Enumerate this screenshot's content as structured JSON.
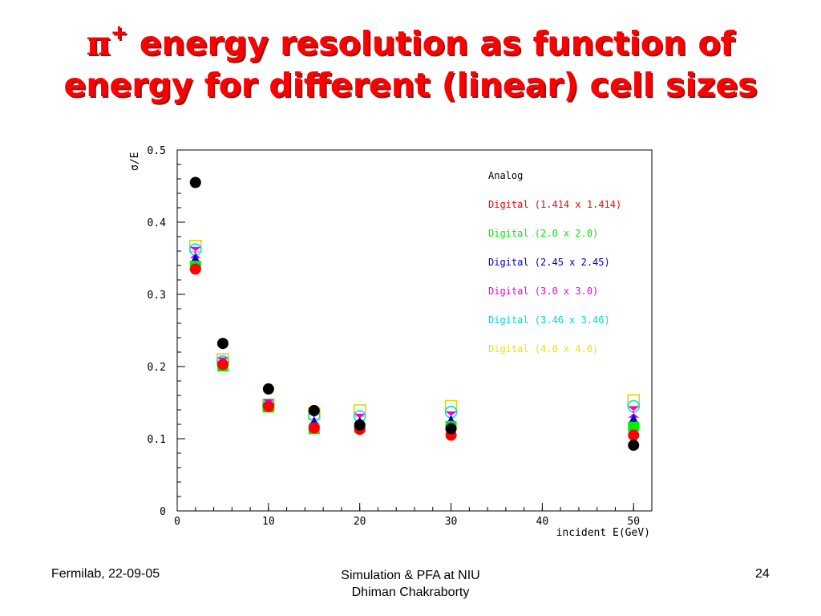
{
  "title": {
    "symbol": "π",
    "superscript": "+",
    "line1_rest": " energy resolution as function of",
    "line2": "energy for different (linear) cell sizes"
  },
  "footer": {
    "left": "Fermilab, 22-09-05",
    "center_line1": "Simulation & PFA at NIU",
    "center_line2": "Dhiman Chakraborty",
    "right": "24"
  },
  "chart_data": {
    "type": "scatter",
    "title": "",
    "xlabel": "incident E(GeV)",
    "ylabel": "σ/E",
    "xlim": [
      0,
      52
    ],
    "ylim": [
      0,
      0.5
    ],
    "x_ticks": [
      "0",
      "10",
      "20",
      "30",
      "40",
      "50"
    ],
    "y_ticks": [
      "0",
      "0.1",
      "0.2",
      "0.3",
      "0.4",
      "0.5"
    ],
    "grid": false,
    "legend_position": "top-right",
    "x": [
      2,
      5,
      10,
      15,
      20,
      30,
      50
    ],
    "series": [
      {
        "name": "Analog",
        "color": "#000000",
        "marker": "circle",
        "values": [
          0.455,
          0.232,
          0.169,
          0.139,
          0.119,
          0.114,
          0.091
        ]
      },
      {
        "name": "Digital (1.414 x 1.414)",
        "color": "#ff0000",
        "marker": "circle",
        "values": [
          0.335,
          0.203,
          0.145,
          0.115,
          0.113,
          0.105,
          0.105
        ]
      },
      {
        "name": "Digital (2.0 x 2.0)",
        "color": "#00ee00",
        "marker": "square",
        "values": [
          0.34,
          0.2,
          0.143,
          0.113,
          0.115,
          0.118,
          0.117
        ]
      },
      {
        "name": "Digital (2.45 x 2.45)",
        "color": "#0000cc",
        "marker": "triangle",
        "values": [
          0.348,
          0.2,
          0.145,
          0.122,
          0.122,
          0.124,
          0.126
        ]
      },
      {
        "name": "Digital (3.0 x 3.0)",
        "color": "#ee00ee",
        "marker": "hourglass",
        "values": [
          0.358,
          0.205,
          0.147,
          0.128,
          0.127,
          0.13,
          0.137
        ]
      },
      {
        "name": "Digital (3.46 x 3.46)",
        "color": "#00e0e0",
        "marker": "open-circle",
        "values": [
          0.362,
          0.207,
          0.147,
          0.132,
          0.131,
          0.137,
          0.145
        ]
      },
      {
        "name": "Digital (4.0 x 4.0)",
        "color": "#ffff00",
        "marker": "open-square",
        "values": [
          0.367,
          0.21,
          0.147,
          0.135,
          0.139,
          0.145,
          0.153
        ]
      }
    ]
  }
}
